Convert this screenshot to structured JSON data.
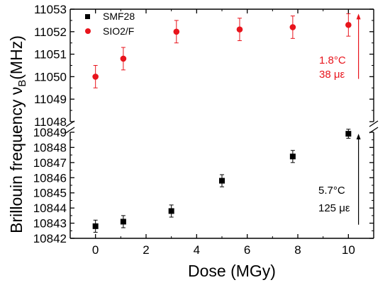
{
  "chart_data": {
    "type": "scatter",
    "xlabel": "Dose (MGy)",
    "ylabel": "Brillouin frequency",
    "ylabel_symbol": "ν",
    "ylabel_subscript": "B",
    "ylabel_unit": "(MHz)",
    "xlim": [
      -1,
      11
    ],
    "x_ticks": [
      0,
      2,
      4,
      6,
      8,
      10
    ],
    "grid": false,
    "legend_position": "top-left",
    "broken_y_axis": true,
    "panels": [
      {
        "name": "upper",
        "ylim": [
          11048,
          11053
        ],
        "y_ticks": [
          11048,
          11049,
          11050,
          11051,
          11052,
          11053
        ]
      },
      {
        "name": "lower",
        "ylim": [
          10842,
          10849
        ],
        "y_ticks": [
          10842,
          10843,
          10844,
          10845,
          10846,
          10847,
          10848,
          10849
        ]
      }
    ],
    "series": [
      {
        "name": "SMF28",
        "marker": "square",
        "color": "#000000",
        "panel": "lower",
        "x": [
          0,
          1.1,
          3,
          5,
          7.8,
          10
        ],
        "y": [
          10842.8,
          10843.1,
          10843.8,
          10845.8,
          10847.4,
          10848.9
        ],
        "err": [
          0.4,
          0.4,
          0.4,
          0.4,
          0.4,
          0.3
        ]
      },
      {
        "name": "SIO2/F",
        "marker": "circle",
        "color": "#e8141c",
        "panel": "upper",
        "x": [
          0,
          1.1,
          3.2,
          5.7,
          7.8,
          10
        ],
        "y": [
          11050.0,
          11050.8,
          11052.0,
          11052.1,
          11052.2,
          11052.3
        ],
        "err": [
          0.5,
          0.5,
          0.5,
          0.5,
          0.5,
          0.5
        ]
      }
    ],
    "annotations": [
      {
        "text_temp": "1.8°C",
        "text_strain": "38 με",
        "color": "#e8141c",
        "panel": "upper",
        "arrow_x": 10.4,
        "arrow_from": 11049.9,
        "arrow_to": 11052.8
      },
      {
        "text_temp": "5.7°C",
        "text_strain": "125 με",
        "color": "#000000",
        "panel": "lower",
        "arrow_x": 10.4,
        "arrow_from": 10842.9,
        "arrow_to": 10848.9
      }
    ]
  }
}
